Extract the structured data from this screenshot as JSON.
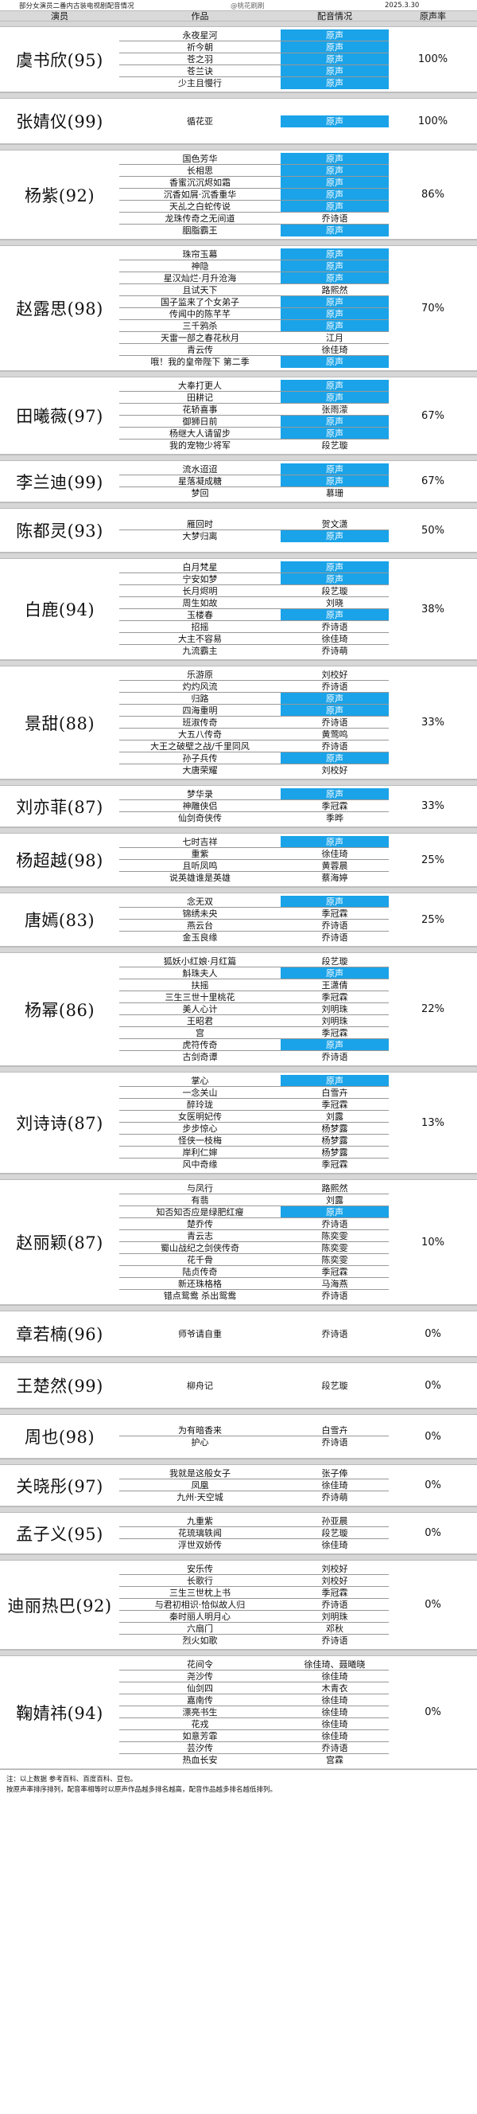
{
  "top": {
    "title": "部分女演员二番内古装电视剧配音情况",
    "watermark": "@桃花刷刷",
    "date": "2025.3.30"
  },
  "header": {
    "actor": "演员",
    "work": "作品",
    "voice": "配音情况",
    "rate": "原声率"
  },
  "actors": [
    {
      "name": "虞书欣(95)",
      "rate": "100%",
      "works": [
        {
          "w": "永夜星河",
          "v": "原声",
          "orig": true
        },
        {
          "w": "祈今朝",
          "v": "原声",
          "orig": true
        },
        {
          "w": "苍之羽",
          "v": "原声",
          "orig": true
        },
        {
          "w": "苍兰诀",
          "v": "原声",
          "orig": true
        },
        {
          "w": "少主且慢行",
          "v": "原声",
          "orig": true
        }
      ]
    },
    {
      "name": "张婧仪(99)",
      "rate": "100%",
      "works": [
        {
          "w": "循花亚",
          "v": "原声",
          "orig": true
        }
      ]
    },
    {
      "name": "杨紫(92)",
      "rate": "86%",
      "works": [
        {
          "w": "国色芳华",
          "v": "原声",
          "orig": true
        },
        {
          "w": "长相思",
          "v": "原声",
          "orig": true
        },
        {
          "w": "香蜜沉沉烬如霜",
          "v": "原声",
          "orig": true
        },
        {
          "w": "沉香如屑·沉香重华",
          "v": "原声",
          "orig": true
        },
        {
          "w": "天乩之白蛇传说",
          "v": "原声",
          "orig": true
        },
        {
          "w": "龙珠传奇之无间道",
          "v": "乔诗语",
          "orig": false
        },
        {
          "w": "胭脂霸王",
          "v": "原声",
          "orig": true
        }
      ]
    },
    {
      "name": "赵露思(98)",
      "rate": "70%",
      "works": [
        {
          "w": "珠帘玉幕",
          "v": "原声",
          "orig": true
        },
        {
          "w": "神隐",
          "v": "原声",
          "orig": true
        },
        {
          "w": "星汉灿烂·月升沧海",
          "v": "原声",
          "orig": true
        },
        {
          "w": "且试天下",
          "v": "路熙然",
          "orig": false
        },
        {
          "w": "国子监来了个女弟子",
          "v": "原声",
          "orig": true
        },
        {
          "w": "传闻中的陈芊芊",
          "v": "原声",
          "orig": true
        },
        {
          "w": "三千鸦杀",
          "v": "原声",
          "orig": true
        },
        {
          "w": "天雷一部之春花秋月",
          "v": "江月",
          "orig": false
        },
        {
          "w": "青云传",
          "v": "徐佳琦",
          "orig": false
        },
        {
          "w": "哦！我的皇帝陛下 第二季",
          "v": "原声",
          "orig": true
        }
      ]
    },
    {
      "name": "田曦薇(97)",
      "rate": "67%",
      "works": [
        {
          "w": "大奉打更人",
          "v": "原声",
          "orig": true
        },
        {
          "w": "田耕记",
          "v": "原声",
          "orig": true
        },
        {
          "w": "花轿喜事",
          "v": "张雨濛",
          "orig": false
        },
        {
          "w": "御狮日前",
          "v": "原声",
          "orig": true
        },
        {
          "w": "杨继大人请留步",
          "v": "原声",
          "orig": true
        },
        {
          "w": "我的宠物少将军",
          "v": "段艺璇",
          "orig": false
        }
      ]
    },
    {
      "name": "李兰迪(99)",
      "rate": "67%",
      "works": [
        {
          "w": "流水迢迢",
          "v": "原声",
          "orig": true
        },
        {
          "w": "星落凝成糖",
          "v": "原声",
          "orig": true
        },
        {
          "w": "梦回",
          "v": "慕珊",
          "orig": false
        }
      ]
    },
    {
      "name": "陈都灵(93)",
      "rate": "50%",
      "works": [
        {
          "w": "雁回时",
          "v": "贺文潇",
          "orig": false
        },
        {
          "w": "大梦归离",
          "v": "原声",
          "orig": true
        }
      ]
    },
    {
      "name": "白鹿(94)",
      "rate": "38%",
      "works": [
        {
          "w": "白月梵星",
          "v": "原声",
          "orig": true
        },
        {
          "w": "宁安如梦",
          "v": "原声",
          "orig": true
        },
        {
          "w": "长月烬明",
          "v": "段艺璇",
          "orig": false
        },
        {
          "w": "周生如故",
          "v": "刘晓",
          "orig": false
        },
        {
          "w": "玉楼春",
          "v": "原声",
          "orig": true
        },
        {
          "w": "招摇",
          "v": "乔诗语",
          "orig": false
        },
        {
          "w": "大主不容易",
          "v": "徐佳琦",
          "orig": false
        },
        {
          "w": "九流霸主",
          "v": "乔诗萌",
          "orig": false
        }
      ]
    },
    {
      "name": "景甜(88)",
      "rate": "33%",
      "works": [
        {
          "w": "乐游原",
          "v": "刘校好",
          "orig": false
        },
        {
          "w": "灼灼风流",
          "v": "乔诗语",
          "orig": false
        },
        {
          "w": "归路",
          "v": "原声",
          "orig": true
        },
        {
          "w": "四海重明",
          "v": "原声",
          "orig": true
        },
        {
          "w": "班淑传奇",
          "v": "乔诗语",
          "orig": false
        },
        {
          "w": "大五八传奇",
          "v": "黄莺鸣",
          "orig": false
        },
        {
          "w": "大王之破壁之战/千里同风",
          "v": "乔诗语",
          "orig": false
        },
        {
          "w": "孙子兵传",
          "v": "原声",
          "orig": true
        },
        {
          "w": "大唐荣耀",
          "v": "刘校好",
          "orig": false
        }
      ]
    },
    {
      "name": "刘亦菲(87)",
      "rate": "33%",
      "works": [
        {
          "w": "梦华录",
          "v": "原声",
          "orig": true
        },
        {
          "w": "神雕侠侣",
          "v": "季冠霖",
          "orig": false
        },
        {
          "w": "仙剑奇侠传",
          "v": "季晔",
          "orig": false
        }
      ]
    },
    {
      "name": "杨超越(98)",
      "rate": "25%",
      "works": [
        {
          "w": "七时吉祥",
          "v": "原声",
          "orig": true
        },
        {
          "w": "重紫",
          "v": "徐佳琦",
          "orig": false
        },
        {
          "w": "且听凤鸣",
          "v": "黄蓉晨",
          "orig": false
        },
        {
          "w": "说英雄谁是英雄",
          "v": "蔡海婷",
          "orig": false
        }
      ]
    },
    {
      "name": "唐嫣(83)",
      "rate": "25%",
      "works": [
        {
          "w": "念无双",
          "v": "原声",
          "orig": true
        },
        {
          "w": "锦绣未央",
          "v": "季冠霖",
          "orig": false
        },
        {
          "w": "燕云台",
          "v": "乔诗语",
          "orig": false
        },
        {
          "w": "金玉良缘",
          "v": "乔诗语",
          "orig": false
        }
      ]
    },
    {
      "name": "杨幂(86)",
      "rate": "22%",
      "works": [
        {
          "w": "狐妖小红娘·月红篇",
          "v": "段艺璇",
          "orig": false
        },
        {
          "w": "斛珠夫人",
          "v": "原声",
          "orig": true
        },
        {
          "w": "扶摇",
          "v": "王潇倩",
          "orig": false
        },
        {
          "w": "三生三世十里桃花",
          "v": "季冠霖",
          "orig": false
        },
        {
          "w": "美人心计",
          "v": "刘明珠",
          "orig": false
        },
        {
          "w": "王昭君",
          "v": "刘明珠",
          "orig": false
        },
        {
          "w": "宫",
          "v": "季冠霖",
          "orig": false
        },
        {
          "w": "虎符传奇",
          "v": "原声",
          "orig": true
        },
        {
          "w": "古剑奇谭",
          "v": "乔诗语",
          "orig": false
        }
      ]
    },
    {
      "name": "刘诗诗(87)",
      "rate": "13%",
      "works": [
        {
          "w": "掌心",
          "v": "原声",
          "orig": true
        },
        {
          "w": "一念关山",
          "v": "白雪卉",
          "orig": false
        },
        {
          "w": "醉玲珑",
          "v": "季冠霖",
          "orig": false
        },
        {
          "w": "女医明妃传",
          "v": "刘露",
          "orig": false
        },
        {
          "w": "步步惊心",
          "v": "杨梦露",
          "orig": false
        },
        {
          "w": "怪侠一枝梅",
          "v": "杨梦露",
          "orig": false
        },
        {
          "w": "岸利仁婶",
          "v": "杨梦露",
          "orig": false
        },
        {
          "w": "风中奇缘",
          "v": "季冠霖",
          "orig": false
        }
      ]
    },
    {
      "name": "赵丽颖(87)",
      "rate": "10%",
      "works": [
        {
          "w": "与凤行",
          "v": "路熙然",
          "orig": false
        },
        {
          "w": "有翡",
          "v": "刘露",
          "orig": false
        },
        {
          "w": "知否知否应是绿肥红瘦",
          "v": "原声",
          "orig": true
        },
        {
          "w": "楚乔传",
          "v": "乔诗语",
          "orig": false
        },
        {
          "w": "青云志",
          "v": "陈奕雯",
          "orig": false
        },
        {
          "w": "蜀山战纪之剑侠传奇",
          "v": "陈奕雯",
          "orig": false
        },
        {
          "w": "花千骨",
          "v": "陈奕雯",
          "orig": false
        },
        {
          "w": "陆贞传奇",
          "v": "季冠霖",
          "orig": false
        },
        {
          "w": "新还珠格格",
          "v": "马海燕",
          "orig": false
        },
        {
          "w": "错点鸳鸯 杀出鸳鸯",
          "v": "乔诗语",
          "orig": false
        }
      ]
    },
    {
      "name": "章若楠(96)",
      "rate": "0%",
      "works": [
        {
          "w": "师爷请自重",
          "v": "乔诗语",
          "orig": false
        }
      ]
    },
    {
      "name": "王楚然(99)",
      "rate": "0%",
      "works": [
        {
          "w": "柳舟记",
          "v": "段艺璇",
          "orig": false
        }
      ]
    },
    {
      "name": "周也(98)",
      "rate": "0%",
      "works": [
        {
          "w": "为有暗香来",
          "v": "白雪卉",
          "orig": false
        },
        {
          "w": "护心",
          "v": "乔诗语",
          "orig": false
        }
      ]
    },
    {
      "name": "关晓彤(97)",
      "rate": "0%",
      "works": [
        {
          "w": "我就是这般女子",
          "v": "张子俸",
          "orig": false
        },
        {
          "w": "凤凰",
          "v": "徐佳琦",
          "orig": false
        },
        {
          "w": "九州·天空城",
          "v": "乔诗萌",
          "orig": false
        }
      ]
    },
    {
      "name": "孟子义(95)",
      "rate": "0%",
      "works": [
        {
          "w": "九重紫",
          "v": "孙亚晨",
          "orig": false
        },
        {
          "w": "花琉璃轶闻",
          "v": "段艺璇",
          "orig": false
        },
        {
          "w": "浮世双娇传",
          "v": "徐佳琦",
          "orig": false
        }
      ]
    },
    {
      "name": "迪丽热巴(92)",
      "rate": "0%",
      "works": [
        {
          "w": "安乐传",
          "v": "刘校好",
          "orig": false
        },
        {
          "w": "长歌行",
          "v": "刘校好",
          "orig": false
        },
        {
          "w": "三生三世枕上书",
          "v": "季冠霖",
          "orig": false
        },
        {
          "w": "与君初相识·恰似故人归",
          "v": "乔诗语",
          "orig": false
        },
        {
          "w": "秦时丽人明月心",
          "v": "刘明珠",
          "orig": false
        },
        {
          "w": "六扇门",
          "v": "邓秋",
          "orig": false
        },
        {
          "w": "烈火如歌",
          "v": "乔诗语",
          "orig": false
        }
      ]
    },
    {
      "name": "鞠婧祎(94)",
      "rate": "0%",
      "works": [
        {
          "w": "花间令",
          "v": "徐佳琦、聂曦晓",
          "orig": false
        },
        {
          "w": "尧沙传",
          "v": "徐佳琦",
          "orig": false
        },
        {
          "w": "仙剑四",
          "v": "木青衣",
          "orig": false
        },
        {
          "w": "嘉南传",
          "v": "徐佳琦",
          "orig": false
        },
        {
          "w": "漂亮书生",
          "v": "徐佳琦",
          "orig": false
        },
        {
          "w": "花戎",
          "v": "徐佳琦",
          "orig": false
        },
        {
          "w": "如意芳霏",
          "v": "徐佳琦",
          "orig": false
        },
        {
          "w": "芸汐传",
          "v": "乔诗语",
          "orig": false
        },
        {
          "w": "热血长安",
          "v": "宫霖",
          "orig": false
        }
      ]
    }
  ],
  "notes": [
    "注：以上数据 参考百科、百度百科、豆包。",
    "按原声率排序排列，配音率相等时以原声作品越多排名越高，配音作品越多排名越低排列。"
  ]
}
